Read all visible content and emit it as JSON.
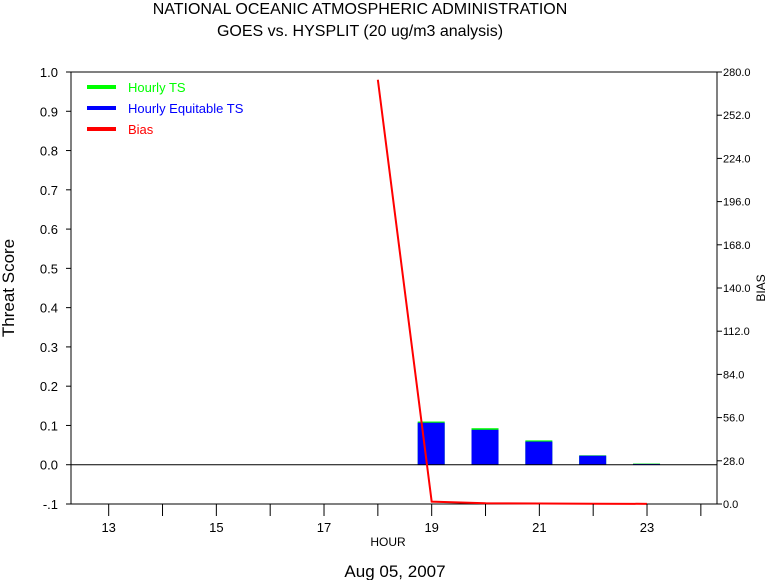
{
  "chart_data": {
    "type": "bar",
    "title": "NATIONAL OCEANIC ATMOSPHERIC ADMINISTRATION",
    "subtitle": "GOES vs. HYSPLIT  (20 ug/m3 analysis)",
    "xlabel": "HOUR",
    "date_label": "Aug 05, 2007",
    "ylabel_left": "Threat Score",
    "ylabel_right": "BIAS",
    "xlim": [
      12.3,
      24.3
    ],
    "ylim_left": [
      -0.1,
      1.0
    ],
    "ylim_right": [
      0.0,
      280.0
    ],
    "x_ticks": [
      13,
      14,
      15,
      16,
      17,
      18,
      19,
      20,
      21,
      22,
      23,
      24
    ],
    "x_tick_labels": [
      "13",
      "",
      "15",
      "",
      "17",
      "",
      "19",
      "",
      "21",
      "",
      "23",
      ""
    ],
    "y_left_ticks": [
      "1.0",
      "0.9",
      "0.8",
      "0.7",
      "0.6",
      "0.5",
      "0.4",
      "0.3",
      "0.2",
      "0.1",
      "0.0",
      "-.1"
    ],
    "y_left_values": [
      1.0,
      0.9,
      0.8,
      0.7,
      0.6,
      0.5,
      0.4,
      0.3,
      0.2,
      0.1,
      0.0,
      -0.1
    ],
    "y_right_ticks": [
      "280.0",
      "252.0",
      "224.0",
      "196.0",
      "168.0",
      "140.0",
      "112.0",
      "84.0",
      "56.0",
      "28.0",
      "0.0"
    ],
    "y_right_values": [
      280,
      252,
      224,
      196,
      168,
      140,
      112,
      84,
      56,
      28,
      0
    ],
    "legend": {
      "placement": "top-left",
      "entries": [
        {
          "label": "Hourly TS",
          "color": "#00ff00"
        },
        {
          "label": "Hourly Equitable TS",
          "color": "#0000ff"
        },
        {
          "label": "Bias",
          "color": "#ff0000"
        }
      ]
    },
    "hours": [
      19,
      20,
      21,
      22,
      23
    ],
    "series": [
      {
        "name": "Hourly TS",
        "color": "#00ff00",
        "values": [
          0.11,
          0.093,
          0.062,
          0.024,
          0.003
        ]
      },
      {
        "name": "Hourly Equitable TS",
        "color": "#0000ff",
        "values": [
          0.107,
          0.089,
          0.059,
          0.023,
          0.002
        ]
      }
    ],
    "bias": {
      "name": "Bias",
      "color": "#ff0000",
      "x": [
        18,
        19,
        20,
        21,
        22,
        23
      ],
      "values": [
        275,
        1.5,
        0.5,
        0.3,
        0.2,
        0.1
      ]
    },
    "zero_line": 0.0
  }
}
